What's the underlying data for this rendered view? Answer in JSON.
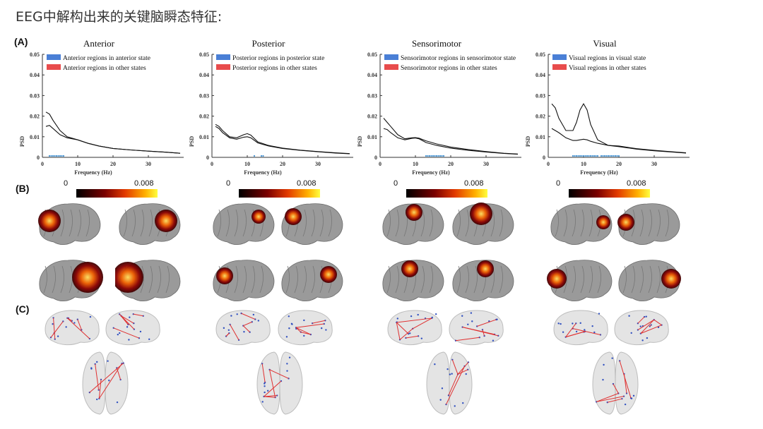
{
  "title": "EEG中解构出来的关键脑瞬态特征:",
  "row_labels": {
    "a": "(A)",
    "b": "(B)",
    "c": "(C)"
  },
  "axis": {
    "ylabel": "PSD",
    "xlabel": "Frequency (Hz)",
    "yticks": [
      "0",
      "0.01",
      "0.02",
      "0.03",
      "0.04",
      "0.05"
    ],
    "xticks": [
      "0",
      "10",
      "20",
      "30"
    ]
  },
  "colorbar": {
    "min": "0",
    "max": "0.008"
  },
  "colors": {
    "in_state": "#4a7fd6",
    "other": "#e84c4c",
    "sig_marker": "#3f8fd0"
  },
  "chart_data": [
    {
      "type": "line",
      "title": "Anterior",
      "xlabel": "Frequency (Hz)",
      "ylabel": "PSD",
      "xlim": [
        0,
        40
      ],
      "ylim": [
        0,
        0.05
      ],
      "x": [
        1,
        2,
        3,
        5,
        7,
        10,
        13,
        16,
        20,
        25,
        30,
        35,
        39
      ],
      "series": [
        {
          "name": "Anterior regions in anterior state",
          "values": [
            0.022,
            0.021,
            0.018,
            0.013,
            0.01,
            0.0085,
            0.0068,
            0.0055,
            0.0043,
            0.0036,
            0.003,
            0.0025,
            0.002
          ]
        },
        {
          "name": "Anterior regions in other states",
          "values": [
            0.015,
            0.0155,
            0.014,
            0.011,
            0.0095,
            0.0085,
            0.0067,
            0.0055,
            0.0043,
            0.0036,
            0.003,
            0.0025,
            0.002
          ]
        }
      ],
      "significant_x": [
        2,
        2.5,
        3,
        3.5,
        4,
        4.5,
        5,
        5.5,
        6
      ]
    },
    {
      "type": "line",
      "title": "Posterior",
      "xlabel": "Frequency (Hz)",
      "ylabel": "PSD",
      "xlim": [
        0,
        40
      ],
      "ylim": [
        0,
        0.05
      ],
      "x": [
        1,
        2,
        3,
        5,
        7,
        9,
        10,
        11,
        13,
        16,
        20,
        25,
        30,
        35,
        39
      ],
      "series": [
        {
          "name": "Posterior regions in posterior state",
          "values": [
            0.016,
            0.015,
            0.013,
            0.01,
            0.0095,
            0.011,
            0.0115,
            0.0108,
            0.0075,
            0.0058,
            0.0045,
            0.0035,
            0.0028,
            0.0022,
            0.0018
          ]
        },
        {
          "name": "Posterior regions in other states",
          "values": [
            0.015,
            0.014,
            0.012,
            0.0095,
            0.0088,
            0.0098,
            0.01,
            0.0095,
            0.007,
            0.0055,
            0.0043,
            0.0034,
            0.0027,
            0.0021,
            0.0017
          ]
        }
      ],
      "significant_x": [
        12,
        14,
        14.5
      ]
    },
    {
      "type": "line",
      "title": "Sensorimotor",
      "xlabel": "Frequency (Hz)",
      "ylabel": "PSD",
      "xlim": [
        0,
        40
      ],
      "ylim": [
        0,
        0.05
      ],
      "x": [
        1,
        2,
        3,
        5,
        7,
        9,
        10,
        11,
        13,
        16,
        20,
        25,
        30,
        35,
        39
      ],
      "series": [
        {
          "name": "Sensorimotor regions in sensorimotor state",
          "values": [
            0.019,
            0.017,
            0.015,
            0.011,
            0.009,
            0.0095,
            0.0096,
            0.0093,
            0.008,
            0.0065,
            0.005,
            0.0038,
            0.0028,
            0.002,
            0.0016
          ]
        },
        {
          "name": "Sensorimotor regions in other states",
          "values": [
            0.014,
            0.0135,
            0.012,
            0.0095,
            0.0085,
            0.0092,
            0.0094,
            0.009,
            0.0072,
            0.0058,
            0.0045,
            0.0034,
            0.0026,
            0.0019,
            0.0015
          ]
        }
      ],
      "significant_x": [
        13,
        13.5,
        14,
        14.5,
        15,
        15.5,
        16,
        16.5,
        17,
        17.5,
        18
      ]
    },
    {
      "type": "line",
      "title": "Visual",
      "xlabel": "Frequency (Hz)",
      "ylabel": "PSD",
      "xlim": [
        0,
        40
      ],
      "ylim": [
        0,
        0.05
      ],
      "x": [
        1,
        2,
        3,
        5,
        7,
        8,
        9,
        10,
        11,
        12,
        14,
        17,
        20,
        25,
        30,
        35,
        39
      ],
      "series": [
        {
          "name": "Visual regions in visual state",
          "values": [
            0.026,
            0.024,
            0.019,
            0.013,
            0.013,
            0.017,
            0.023,
            0.026,
            0.023,
            0.016,
            0.0085,
            0.0058,
            0.0052,
            0.004,
            0.0032,
            0.0026,
            0.0021
          ]
        },
        {
          "name": "Visual regions in other states",
          "values": [
            0.014,
            0.013,
            0.012,
            0.0095,
            0.0082,
            0.0082,
            0.0085,
            0.0088,
            0.0085,
            0.0078,
            0.0068,
            0.0058,
            0.0055,
            0.0042,
            0.0034,
            0.0027,
            0.0022
          ]
        }
      ],
      "significant_x": [
        7,
        7.5,
        8,
        8.5,
        9,
        9.5,
        10,
        10.5,
        11,
        11.5,
        12,
        12.5,
        13,
        13.5,
        14,
        15,
        15.5,
        16,
        16.5,
        17,
        17.5,
        18,
        18.5,
        19,
        19.5,
        20
      ]
    }
  ]
}
